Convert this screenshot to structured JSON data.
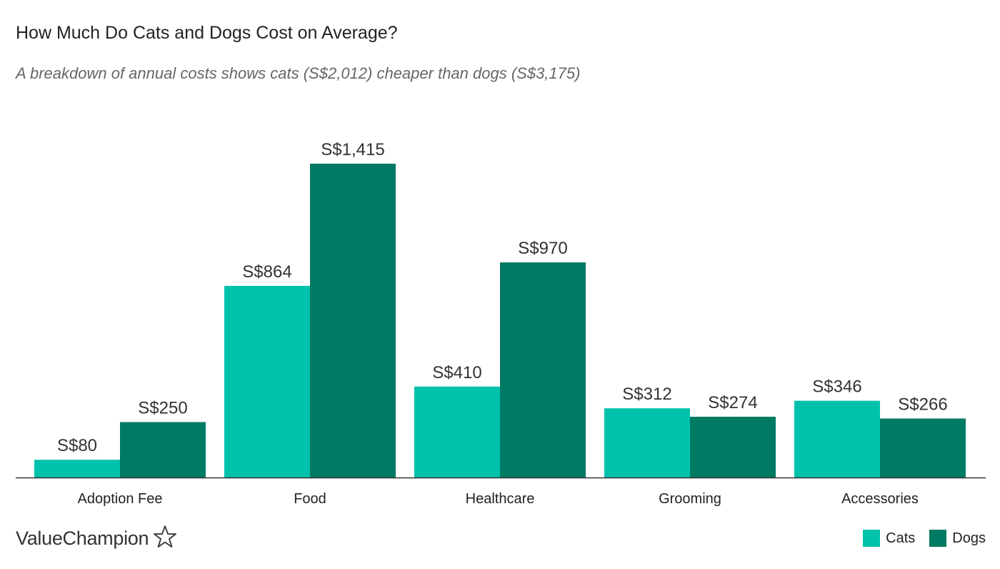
{
  "header": {
    "title": "How Much Do Cats and Dogs Cost on Average?",
    "subtitle": "A breakdown of annual costs shows cats (S$2,012) cheaper than dogs (S$3,175)"
  },
  "brand": {
    "name": "ValueChampion",
    "icon": "star-outline-icon"
  },
  "colors": {
    "cats": "#00C2AC",
    "dogs": "#007A63",
    "axis": "#333333"
  },
  "legend": [
    {
      "label": "Cats",
      "color": "#00C2AC"
    },
    {
      "label": "Dogs",
      "color": "#007A63"
    }
  ],
  "chart_data": {
    "type": "bar",
    "categories": [
      "Adoption Fee",
      "Food",
      "Healthcare",
      "Grooming",
      "Accessories"
    ],
    "series": [
      {
        "name": "Cats",
        "values": [
          80,
          864,
          410,
          312,
          346
        ],
        "labels": [
          "S$80",
          "S$864",
          "S$410",
          "S$312",
          "S$346"
        ]
      },
      {
        "name": "Dogs",
        "values": [
          250,
          1415,
          970,
          274,
          266
        ],
        "labels": [
          "S$250",
          "S$1,415",
          "S$970",
          "S$274",
          "S$266"
        ]
      }
    ],
    "title": "How Much Do Cats and Dogs Cost on Average?",
    "subtitle": "A breakdown of annual costs shows cats (S$2,012) cheaper than dogs (S$3,175)",
    "xlabel": "",
    "ylabel": "",
    "ylim": [
      0,
      1415
    ],
    "grid": false,
    "legend_position": "bottom-right"
  }
}
